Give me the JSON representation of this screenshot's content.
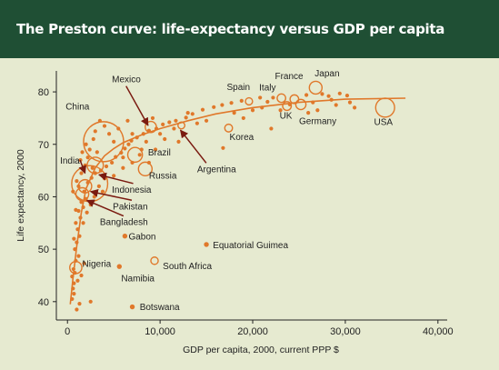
{
  "title": "The Preston curve: life-expectancy versus GDP per capita",
  "colors": {
    "header_bg": "#1f4f34",
    "background": "#e6ead0",
    "marker": "#e0782a",
    "curve": "#e0782a",
    "arrow": "#7a1a10"
  },
  "chart_data": {
    "type": "scatter",
    "xlabel": "GDP per capita, 2000, current PPP $",
    "ylabel": "Life expectancy, 2000",
    "xlim": [
      -1200,
      41000
    ],
    "ylim": [
      36.5,
      84
    ],
    "x_ticks": [
      0,
      10000,
      20000,
      30000,
      40000
    ],
    "x_tick_labels": [
      "0",
      "10,000",
      "20,000",
      "30,000",
      "40,000"
    ],
    "y_ticks": [
      40,
      50,
      60,
      70,
      80
    ],
    "y_tick_labels": [
      "40",
      "50",
      "60",
      "70",
      "80"
    ],
    "grid": false,
    "countries": [
      {
        "name": "China",
        "x": 3900,
        "y": 70.5,
        "pop": 1260
      },
      {
        "name": "India",
        "x": 2400,
        "y": 62.5,
        "pop": 1020
      },
      {
        "name": "Mexico",
        "x": 9000,
        "y": 73.3,
        "pop": 98
      },
      {
        "name": "Brazil",
        "x": 7300,
        "y": 68.0,
        "pop": 170
      },
      {
        "name": "Russia",
        "x": 8400,
        "y": 65.3,
        "pop": 146
      },
      {
        "name": "Indonesia",
        "x": 3000,
        "y": 66.0,
        "pop": 206
      },
      {
        "name": "Pakistan",
        "x": 1900,
        "y": 62.0,
        "pop": 138
      },
      {
        "name": "Bangladesh",
        "x": 1600,
        "y": 60.5,
        "pop": 130
      },
      {
        "name": "Nigeria",
        "x": 900,
        "y": 46.5,
        "pop": 115
      },
      {
        "name": "Argentina",
        "x": 12300,
        "y": 73.6,
        "pop": 37
      },
      {
        "name": "Korea",
        "x": 17400,
        "y": 73.1,
        "pop": 47
      },
      {
        "name": "Spain",
        "x": 19600,
        "y": 78.2,
        "pop": 40
      },
      {
        "name": "Italy",
        "x": 23100,
        "y": 78.8,
        "pop": 57
      },
      {
        "name": "France",
        "x": 24500,
        "y": 78.6,
        "pop": 59
      },
      {
        "name": "Japan",
        "x": 26800,
        "y": 80.8,
        "pop": 127
      },
      {
        "name": "UK",
        "x": 23700,
        "y": 77.3,
        "pop": 59
      },
      {
        "name": "Germany",
        "x": 25200,
        "y": 77.6,
        "pop": 82
      },
      {
        "name": "USA",
        "x": 34300,
        "y": 77.0,
        "pop": 282
      },
      {
        "name": "Gabon",
        "x": 6200,
        "y": 52.5,
        "pop": 1.2
      },
      {
        "name": "Equatorial Guimea",
        "x": 15000,
        "y": 50.9,
        "pop": 0.5
      },
      {
        "name": "South Africa",
        "x": 9400,
        "y": 47.8,
        "pop": 43
      },
      {
        "name": "Namibia",
        "x": 5600,
        "y": 46.7,
        "pop": 1.9
      },
      {
        "name": "Botswana",
        "x": 7000,
        "y": 39.0,
        "pop": 1.7
      }
    ],
    "other_points": [
      [
        600,
        42.5
      ],
      [
        700,
        43.5
      ],
      [
        500,
        44.8
      ],
      [
        800,
        45.5
      ],
      [
        650,
        46.2
      ],
      [
        900,
        47.8
      ],
      [
        500,
        40.5
      ],
      [
        700,
        41.5
      ],
      [
        1000,
        38.5
      ],
      [
        1300,
        39.6
      ],
      [
        2500,
        40.0
      ],
      [
        1100,
        44.0
      ],
      [
        1500,
        45.0
      ],
      [
        1800,
        47.3
      ],
      [
        1200,
        48.7
      ],
      [
        800,
        50.0
      ],
      [
        1000,
        51.3
      ],
      [
        1300,
        52.5
      ],
      [
        1100,
        53.8
      ],
      [
        900,
        55.0
      ],
      [
        1400,
        56.0
      ],
      [
        1200,
        57.3
      ],
      [
        1700,
        58.0
      ],
      [
        1500,
        59.0
      ],
      [
        2000,
        59.6
      ],
      [
        1800,
        61.0
      ],
      [
        2200,
        62.7
      ],
      [
        2600,
        63.6
      ],
      [
        3000,
        64.5
      ],
      [
        3600,
        65.0
      ],
      [
        4200,
        65.8
      ],
      [
        4800,
        66.5
      ],
      [
        5200,
        67.6
      ],
      [
        5800,
        68.4
      ],
      [
        6200,
        69.2
      ],
      [
        6600,
        70.0
      ],
      [
        6900,
        70.7
      ],
      [
        7500,
        71.3
      ],
      [
        8200,
        72.0
      ],
      [
        8800,
        72.6
      ],
      [
        9600,
        73.0
      ],
      [
        10300,
        73.8
      ],
      [
        11000,
        74.2
      ],
      [
        11700,
        74.5
      ],
      [
        12800,
        75.1
      ],
      [
        13500,
        75.8
      ],
      [
        14600,
        76.6
      ],
      [
        15800,
        77.1
      ],
      [
        16700,
        77.5
      ],
      [
        17700,
        77.9
      ],
      [
        18800,
        78.3
      ],
      [
        20800,
        78.9
      ],
      [
        21600,
        78.1
      ],
      [
        22200,
        78.9
      ],
      [
        25800,
        79.4
      ],
      [
        27500,
        79.6
      ],
      [
        28200,
        79.2
      ],
      [
        29400,
        79.7
      ],
      [
        30200,
        79.3
      ],
      [
        31000,
        77.0
      ],
      [
        23000,
        76.5
      ],
      [
        24000,
        77.6
      ],
      [
        22000,
        73.0
      ],
      [
        16800,
        69.3
      ],
      [
        27000,
        76.5
      ],
      [
        26000,
        76.0
      ],
      [
        18000,
        76.0
      ],
      [
        14000,
        74.0
      ],
      [
        11500,
        73.0
      ],
      [
        10000,
        72.0
      ],
      [
        8000,
        69.0
      ],
      [
        6000,
        67.5
      ],
      [
        5000,
        70.5
      ],
      [
        4500,
        72.0
      ],
      [
        4000,
        73.5
      ],
      [
        3500,
        74.5
      ],
      [
        3000,
        72.5
      ],
      [
        2800,
        71.0
      ],
      [
        2400,
        69.0
      ],
      [
        2000,
        70.0
      ],
      [
        1600,
        68.5
      ],
      [
        1400,
        67.0
      ],
      [
        1900,
        66.0
      ],
      [
        2200,
        67.5
      ],
      [
        3200,
        68.5
      ],
      [
        5500,
        73.0
      ],
      [
        6500,
        74.5
      ],
      [
        7000,
        72.0
      ],
      [
        8500,
        70.5
      ],
      [
        9200,
        75.0
      ],
      [
        12000,
        70.5
      ],
      [
        13000,
        76.0
      ],
      [
        15000,
        74.5
      ],
      [
        19000,
        75.0
      ],
      [
        20000,
        76.5
      ],
      [
        21000,
        77.0
      ],
      [
        26500,
        78.0
      ],
      [
        28500,
        78.5
      ],
      [
        29000,
        77.5
      ],
      [
        30500,
        78.0
      ],
      [
        2900,
        60.0
      ],
      [
        3400,
        62.0
      ],
      [
        4000,
        63.5
      ],
      [
        1200,
        62.0
      ],
      [
        900,
        57.5
      ],
      [
        700,
        52.0
      ],
      [
        1700,
        55.0
      ],
      [
        2100,
        57.0
      ],
      [
        2500,
        58.5
      ],
      [
        3800,
        61.0
      ],
      [
        5000,
        64.0
      ],
      [
        6000,
        65.5
      ],
      [
        7000,
        66.5
      ],
      [
        7800,
        68.0
      ],
      [
        8800,
        66.5
      ],
      [
        9500,
        69.0
      ],
      [
        10500,
        71.0
      ],
      [
        600,
        61.0
      ],
      [
        1000,
        63.0
      ],
      [
        1500,
        64.5
      ],
      [
        2700,
        65.5
      ]
    ],
    "curve": [
      [
        300,
        39.5
      ],
      [
        600,
        44.5
      ],
      [
        1000,
        50.5
      ],
      [
        1500,
        57.0
      ],
      [
        2000,
        61.5
      ],
      [
        3000,
        65.5
      ],
      [
        4000,
        67.8
      ],
      [
        5000,
        69.2
      ],
      [
        6000,
        70.3
      ],
      [
        8000,
        71.8
      ],
      [
        10000,
        73.0
      ],
      [
        13000,
        74.5
      ],
      [
        16000,
        75.8
      ],
      [
        20000,
        77.0
      ],
      [
        25000,
        78.0
      ],
      [
        30000,
        78.6
      ],
      [
        36500,
        78.8
      ]
    ],
    "annotations": [
      {
        "label": "Mexico",
        "text_x": 4800,
        "text_y": 81.8,
        "anchor": "start",
        "arrow_to_x": 8700,
        "arrow_to_y": 73.6
      },
      {
        "label": "China",
        "text_x": -200,
        "text_y": 76.6,
        "anchor": "start",
        "arrow_to_x": null,
        "arrow_to_y": null
      },
      {
        "label": "India",
        "text_x": -800,
        "text_y": 66.3,
        "anchor": "start",
        "arrow_to_x": 1900,
        "arrow_to_y": 64.5
      },
      {
        "label": "Brazil",
        "text_x": 8700,
        "text_y": 67.9,
        "anchor": "start",
        "arrow_to_x": null,
        "arrow_to_y": null
      },
      {
        "label": "Russia",
        "text_x": 8800,
        "text_y": 63.5,
        "anchor": "start",
        "arrow_to_x": null,
        "arrow_to_y": null
      },
      {
        "label": "Indonesia",
        "text_x": 4800,
        "text_y": 60.8,
        "anchor": "start",
        "arrow_to_x": 3400,
        "arrow_to_y": 64.2
      },
      {
        "label": "Pakistan",
        "text_x": 4900,
        "text_y": 57.6,
        "anchor": "start",
        "arrow_to_x": 2500,
        "arrow_to_y": 61.0
      },
      {
        "label": "Bangladesh",
        "text_x": 3500,
        "text_y": 54.6,
        "anchor": "start",
        "arrow_to_x": 2100,
        "arrow_to_y": 59.3
      },
      {
        "label": "Argentina",
        "text_x": 14000,
        "text_y": 64.7,
        "anchor": "start",
        "arrow_to_x": 12200,
        "arrow_to_y": 72.7
      },
      {
        "label": "Korea",
        "text_x": 17500,
        "text_y": 70.8,
        "anchor": "start",
        "arrow_to_x": null,
        "arrow_to_y": null
      },
      {
        "label": "Spain",
        "text_x": 17200,
        "text_y": 80.4,
        "anchor": "start",
        "arrow_to_x": null,
        "arrow_to_y": null
      },
      {
        "label": "Italy",
        "text_x": 20700,
        "text_y": 80.3,
        "anchor": "start",
        "arrow_to_x": null,
        "arrow_to_y": null
      },
      {
        "label": "France",
        "text_x": 22400,
        "text_y": 82.4,
        "anchor": "start",
        "arrow_to_x": null,
        "arrow_to_y": null
      },
      {
        "label": "Japan",
        "text_x": 26700,
        "text_y": 83.0,
        "anchor": "start",
        "arrow_to_x": null,
        "arrow_to_y": null
      },
      {
        "label": "UK",
        "text_x": 22900,
        "text_y": 74.9,
        "anchor": "start",
        "arrow_to_x": null,
        "arrow_to_y": null
      },
      {
        "label": "Germany",
        "text_x": 25000,
        "text_y": 73.9,
        "anchor": "start",
        "arrow_to_x": null,
        "arrow_to_y": null
      },
      {
        "label": "USA",
        "text_x": 33100,
        "text_y": 73.7,
        "anchor": "start",
        "arrow_to_x": null,
        "arrow_to_y": null
      },
      {
        "label": "Gabon",
        "text_x": 6600,
        "text_y": 51.8,
        "anchor": "start",
        "arrow_to_x": null,
        "arrow_to_y": null
      },
      {
        "label": "Equatorial Guimea",
        "text_x": 15700,
        "text_y": 50.2,
        "anchor": "start",
        "arrow_to_x": null,
        "arrow_to_y": null
      },
      {
        "label": "Nigeria",
        "text_x": 1600,
        "text_y": 46.6,
        "anchor": "start",
        "arrow_to_x": null,
        "arrow_to_y": null
      },
      {
        "label": "South Africa",
        "text_x": 10300,
        "text_y": 46.2,
        "anchor": "start",
        "arrow_to_x": null,
        "arrow_to_y": null
      },
      {
        "label": "Namibia",
        "text_x": 5800,
        "text_y": 43.9,
        "anchor": "start",
        "arrow_to_x": null,
        "arrow_to_y": null
      },
      {
        "label": "Botswana",
        "text_x": 7800,
        "text_y": 38.4,
        "anchor": "start",
        "arrow_to_x": null,
        "arrow_to_y": null
      }
    ]
  }
}
